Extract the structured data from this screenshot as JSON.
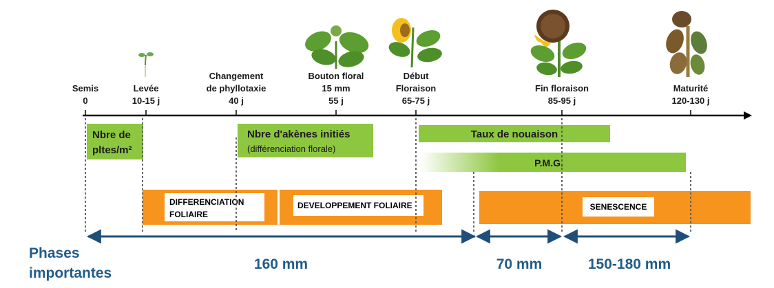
{
  "stages": [
    {
      "name": "Semis",
      "time": "0"
    },
    {
      "name": "Levée",
      "time": "10-15 j"
    },
    {
      "name_lines": [
        "Changement",
        "de phyllotaxie"
      ],
      "time": "40 j"
    },
    {
      "name_lines": [
        "Bouton floral",
        "15 mm"
      ],
      "time": "55 j"
    },
    {
      "name_lines": [
        "Début",
        "Floraison"
      ],
      "time": "65-75 j"
    },
    {
      "name": "Fin floraison",
      "time": "85-95 j"
    },
    {
      "name": "Maturité",
      "time": "120-130 j"
    }
  ],
  "green_boxes": {
    "plants": [
      "Nbre de",
      "pltes/m²"
    ],
    "akenes": {
      "title": "Nbre d'akènes initiés",
      "sub": "(différenciation florale)"
    },
    "nouaison": "Taux de nouaison",
    "pmg": "P.M.G."
  },
  "orange_boxes": {
    "diff": [
      "DIFFERENCIATION",
      "FOLIAIRE"
    ],
    "dev": "DEVELOPPEMENT FOLIAIRE",
    "sen": "SENESCENCE"
  },
  "water": {
    "title": [
      "Phases",
      "importantes"
    ],
    "amounts": [
      "160 mm",
      "70 mm",
      "150-180 mm"
    ]
  },
  "colors": {
    "green": "#8dc63f",
    "orange": "#f7941d",
    "blue": "#1f4e79",
    "blue_text": "#1f5c8a"
  },
  "icons": [
    "seedling-icon",
    "young-plant-icon",
    "flowering-sunflower-icon",
    "mature-sunflower-icon",
    "dried-sunflower-icon"
  ]
}
